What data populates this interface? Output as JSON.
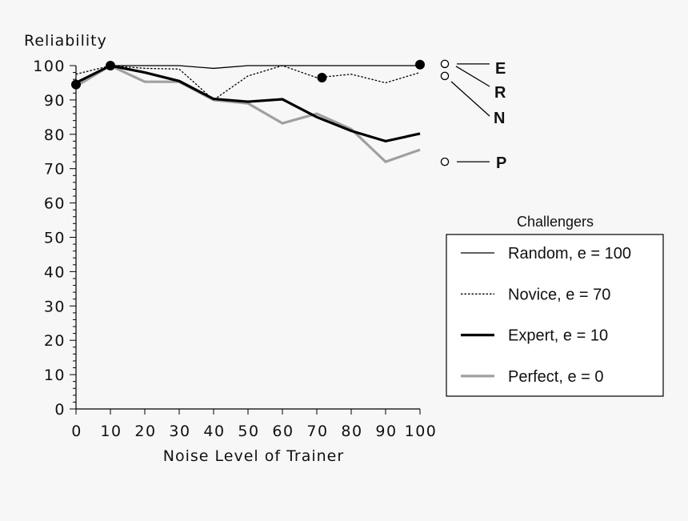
{
  "chart_data": {
    "type": "line",
    "ylabel": "Reliability",
    "xlabel": "Noise Level of Trainer",
    "xlim": [
      0,
      100
    ],
    "ylim": [
      0,
      100
    ],
    "x_ticks": [
      "0",
      "10",
      "20",
      "30",
      "40",
      "50",
      "60",
      "70",
      "80",
      "90",
      "100"
    ],
    "y_ticks": [
      "0",
      "10",
      "20",
      "30",
      "40",
      "50",
      "60",
      "70",
      "80",
      "90",
      "100"
    ],
    "series": [
      {
        "key": "random",
        "name": "Random, e = 100",
        "end_label": "R",
        "color": "#000000",
        "style": "thin",
        "x": [
          0,
          10,
          20,
          30,
          40,
          50,
          60,
          70,
          80,
          90,
          100
        ],
        "y": [
          95,
          100,
          100,
          100,
          99.2,
          100,
          100,
          100,
          100,
          100,
          100
        ]
      },
      {
        "key": "novice",
        "name": "Novice, e = 70",
        "end_label": "N",
        "color": "#000000",
        "style": "dotted",
        "x": [
          0,
          10,
          20,
          30,
          40,
          50,
          60,
          70,
          80,
          90,
          100
        ],
        "y": [
          97.5,
          100,
          99.2,
          99,
          90,
          97,
          100,
          96.5,
          97.5,
          95,
          98
        ]
      },
      {
        "key": "expert",
        "name": "Expert, e = 10",
        "end_label": "E",
        "color": "#000000",
        "style": "thick",
        "x": [
          0,
          10,
          20,
          30,
          40,
          50,
          60,
          70,
          80,
          90,
          100
        ],
        "y": [
          95,
          100,
          98,
          95.5,
          90.3,
          89.5,
          90.2,
          85,
          81,
          78,
          80.2
        ]
      },
      {
        "key": "perfect",
        "name": "Perfect, e = 0",
        "end_label": "P",
        "color": "#a0a0a0",
        "style": "thick",
        "x": [
          0,
          10,
          20,
          30,
          40,
          50,
          60,
          70,
          80,
          90,
          100
        ],
        "y": [
          94,
          100,
          95.3,
          95.3,
          90,
          89,
          83.2,
          86,
          81.5,
          72,
          75.5
        ]
      }
    ],
    "markers": [
      {
        "x": 0,
        "y": 94.5
      },
      {
        "x": 10,
        "y": 100
      },
      {
        "x": 71.5,
        "y": 96.5
      },
      {
        "x": 100,
        "y": 100.3
      }
    ],
    "endpoint_circles": [
      {
        "label": "E",
        "value": 100.5
      },
      {
        "label": "R",
        "value": 97
      },
      {
        "label": "N",
        "value": 97
      },
      {
        "label": "P",
        "value": 72
      }
    ],
    "legend": {
      "title": "Challengers",
      "placement": "right"
    }
  }
}
